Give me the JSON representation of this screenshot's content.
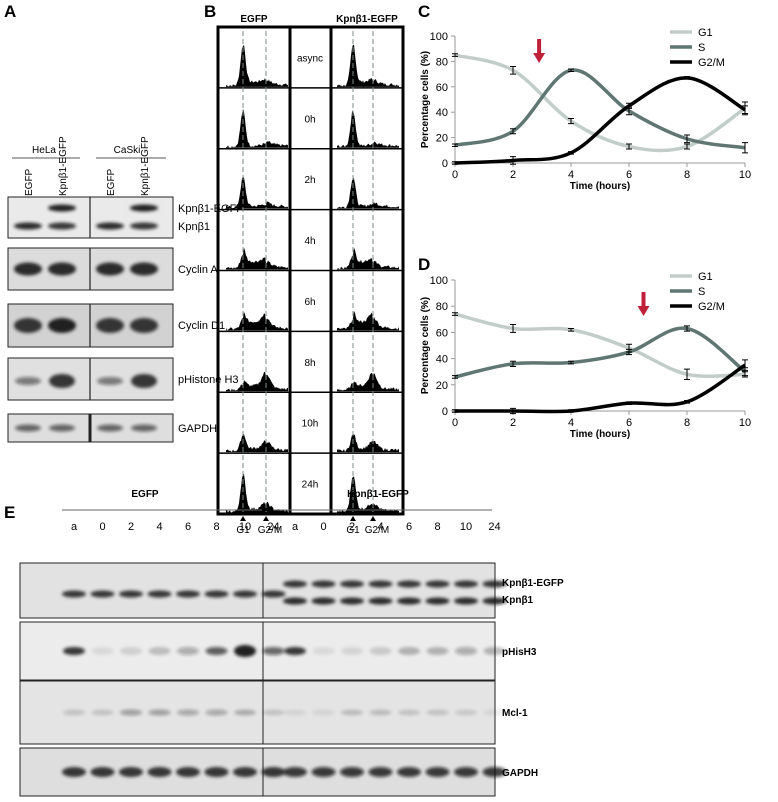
{
  "panel_labels": [
    "A",
    "B",
    "C",
    "D",
    "E"
  ],
  "panel_a": {
    "groups": [
      "HeLa",
      "CaSki"
    ],
    "lanes": [
      "EGFP",
      "Kpnβ1-EGFP",
      "EGFP",
      "Kpnβ1-EGFP"
    ],
    "blots": [
      "Kpnβ1-EGFP",
      "Kpnβ1",
      "Cyclin A",
      "Cyclin D1",
      "pHistone H3",
      "GAPDH"
    ]
  },
  "panel_b": {
    "columns": [
      "EGFP",
      "Kpnβ1-EGFP"
    ],
    "timepoints": [
      "async",
      "0h",
      "2h",
      "4h",
      "6h",
      "8h",
      "10h",
      "24h"
    ],
    "markers": [
      "G1",
      "G2/M"
    ]
  },
  "chart_data": [
    {
      "type": "line",
      "x_label": "Time (hours)",
      "y_label": "Percentage cells (%)",
      "x": [
        0,
        2,
        4,
        6,
        8,
        10
      ],
      "xlim": [
        0,
        10
      ],
      "xticks": [
        0,
        2,
        4,
        6,
        8,
        10
      ],
      "ylim": [
        0,
        100
      ],
      "yticks": [
        0,
        20,
        40,
        60,
        80,
        100
      ],
      "legend": "top-right",
      "arrow_x": 2.9,
      "arrow_color": "#c0213a",
      "series": [
        {
          "name": "G1",
          "color": "#c2cdc9",
          "values": [
            85,
            73,
            33,
            13,
            13,
            43
          ],
          "errors": [
            1,
            3,
            2,
            2,
            2,
            5
          ]
        },
        {
          "name": "S",
          "color": "#5f7672",
          "values": [
            14,
            25,
            73,
            41,
            19,
            12
          ],
          "errors": [
            1,
            2,
            1,
            3,
            3,
            4
          ]
        },
        {
          "name": "G2/M",
          "color": "#000000",
          "values": [
            0,
            2,
            8,
            45,
            67,
            42
          ],
          "errors": [
            1,
            3,
            1,
            2,
            1,
            3
          ]
        }
      ]
    },
    {
      "type": "line",
      "x_label": "Time (hours)",
      "y_label": "Percentage cells (%)",
      "x": [
        0,
        2,
        4,
        6,
        8,
        10
      ],
      "xlim": [
        0,
        10
      ],
      "xticks": [
        0,
        2,
        4,
        6,
        8,
        10
      ],
      "ylim": [
        0,
        100
      ],
      "yticks": [
        0,
        20,
        40,
        60,
        80,
        100
      ],
      "legend": "top-right",
      "arrow_x": 6.5,
      "arrow_color": "#c0213a",
      "series": [
        {
          "name": "G1",
          "color": "#c2cdc9",
          "values": [
            74,
            63,
            62,
            48,
            28,
            28
          ],
          "errors": [
            1,
            3,
            1,
            3,
            4,
            2
          ]
        },
        {
          "name": "S",
          "color": "#5f7672",
          "values": [
            26,
            36,
            37,
            45,
            63,
            30
          ],
          "errors": [
            1,
            2,
            1,
            2,
            2,
            3
          ]
        },
        {
          "name": "G2/M",
          "color": "#000000",
          "values": [
            0,
            0,
            0,
            6,
            7,
            35
          ],
          "errors": [
            1,
            2,
            1,
            1,
            1,
            4
          ]
        }
      ]
    }
  ],
  "panel_e": {
    "groups": [
      "EGFP",
      "Kpnβ1-EGFP"
    ],
    "lanes": [
      "a",
      "0",
      "2",
      "4",
      "6",
      "8",
      "10",
      "24"
    ],
    "blots": [
      "Kpnβ1-EGFP",
      "Kpnβ1",
      "pHisH3",
      "Mcl-1",
      "GAPDH"
    ]
  }
}
